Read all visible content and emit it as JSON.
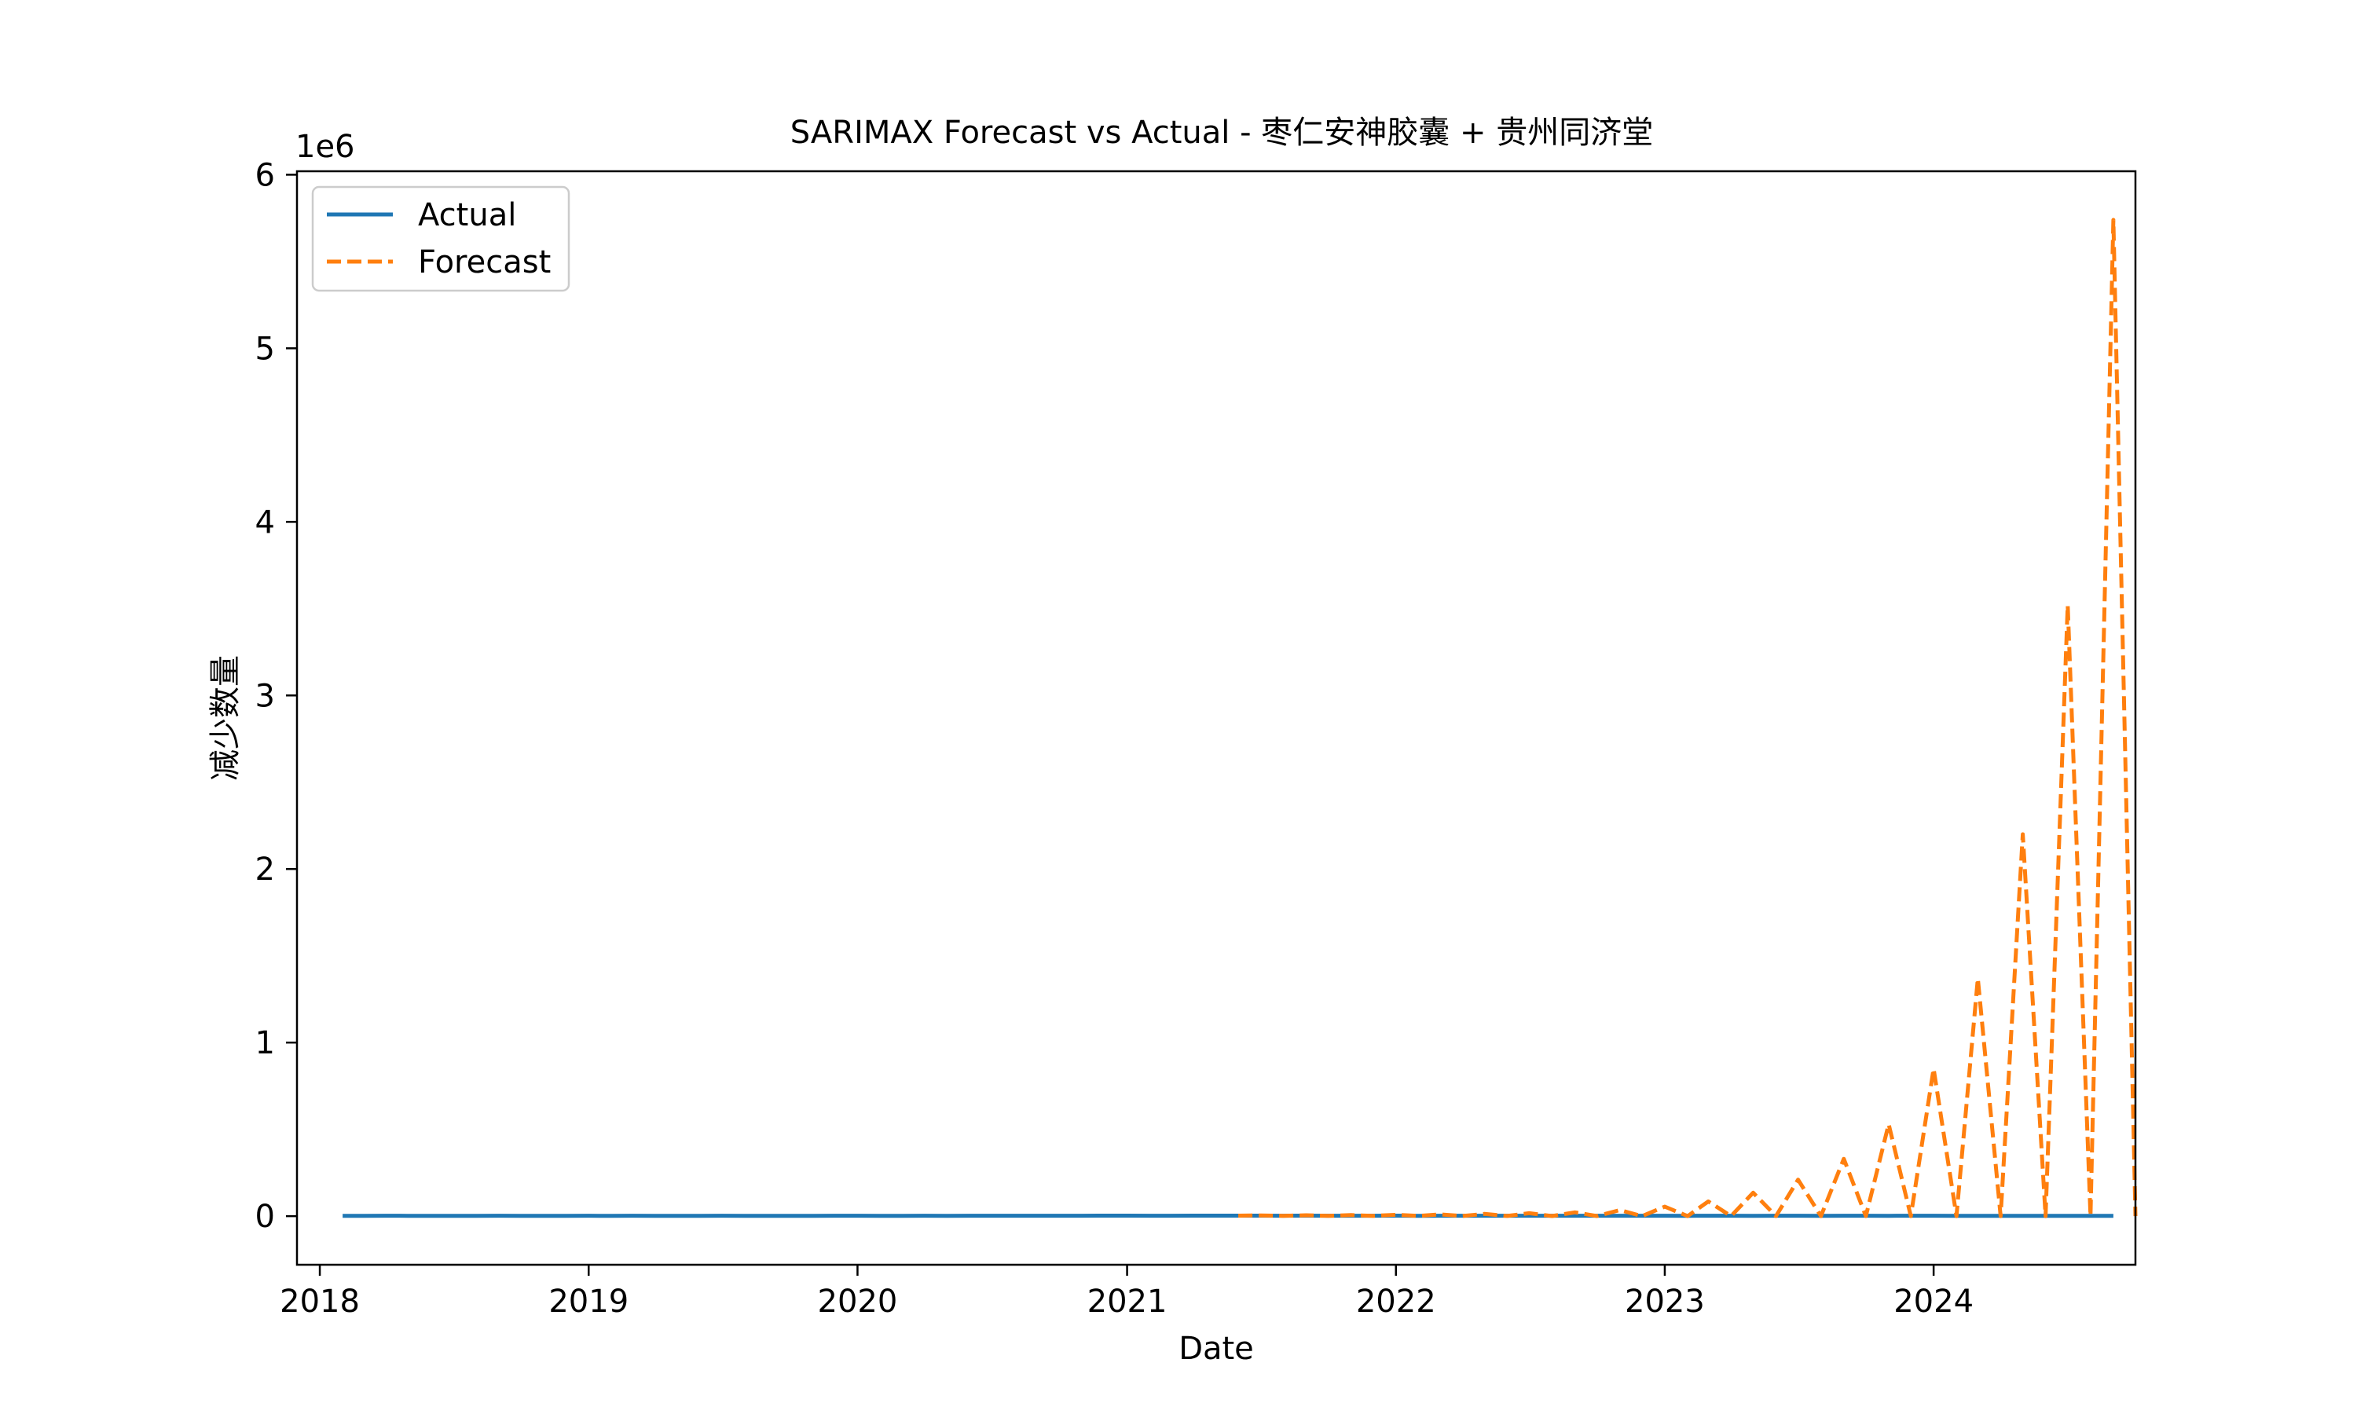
{
  "chart_data": {
    "type": "line",
    "title": "SARIMAX Forecast vs Actual - 枣仁安神胶囊 + 贵州同济堂",
    "xlabel": "Date",
    "ylabel": "减少数量",
    "y_offset_label": "1e6",
    "xlim": [
      "2017-12-01",
      "2024-10-01"
    ],
    "ylim": [
      -280000,
      6020000
    ],
    "x_ticks": [
      "2018",
      "2019",
      "2020",
      "2021",
      "2022",
      "2023",
      "2024"
    ],
    "x_tick_dates": [
      "2018-01-01",
      "2019-01-01",
      "2020-01-01",
      "2021-01-01",
      "2022-01-01",
      "2023-01-01",
      "2024-01-01"
    ],
    "y_ticks": [
      0,
      1000000,
      2000000,
      3000000,
      4000000,
      5000000,
      6000000
    ],
    "y_tick_labels": [
      "0",
      "1",
      "2",
      "3",
      "4",
      "5",
      "6"
    ],
    "legend": {
      "position": "top-left",
      "entries": [
        "Actual",
        "Forecast"
      ]
    },
    "grid": false,
    "series": [
      {
        "name": "Actual",
        "color": "#1f77b4",
        "style": "solid",
        "points": [
          [
            "2018-02-01",
            2000
          ],
          [
            "2018-03-01",
            1800
          ],
          [
            "2018-04-01",
            2200
          ],
          [
            "2018-05-01",
            1900
          ],
          [
            "2018-06-01",
            2100
          ],
          [
            "2018-07-01",
            2000
          ],
          [
            "2018-08-01",
            1700
          ],
          [
            "2018-09-01",
            2300
          ],
          [
            "2018-10-01",
            2000
          ],
          [
            "2018-11-01",
            1900
          ],
          [
            "2018-12-01",
            2100
          ],
          [
            "2019-01-01",
            2400
          ],
          [
            "2019-02-01",
            1600
          ],
          [
            "2019-03-01",
            2200
          ],
          [
            "2019-04-01",
            2000
          ],
          [
            "2019-05-01",
            1900
          ],
          [
            "2019-06-01",
            2100
          ],
          [
            "2019-07-01",
            2200
          ],
          [
            "2019-08-01",
            1800
          ],
          [
            "2019-09-01",
            2000
          ],
          [
            "2019-10-01",
            2100
          ],
          [
            "2019-11-01",
            1900
          ],
          [
            "2019-12-01",
            2300
          ],
          [
            "2020-01-01",
            2500
          ],
          [
            "2020-02-01",
            1500
          ],
          [
            "2020-03-01",
            2000
          ],
          [
            "2020-04-01",
            2200
          ],
          [
            "2020-05-01",
            2100
          ],
          [
            "2020-06-01",
            2400
          ],
          [
            "2020-07-01",
            2300
          ],
          [
            "2020-08-01",
            2500
          ],
          [
            "2020-09-01",
            2600
          ],
          [
            "2020-10-01",
            2400
          ],
          [
            "2020-11-01",
            2500
          ],
          [
            "2020-12-01",
            2800
          ],
          [
            "2021-01-01",
            3000
          ],
          [
            "2021-02-01",
            2200
          ],
          [
            "2021-03-01",
            2600
          ],
          [
            "2021-04-01",
            2800
          ],
          [
            "2021-05-01",
            2700
          ],
          [
            "2021-06-01",
            2900
          ],
          [
            "2021-07-01",
            2800
          ],
          [
            "2021-08-01",
            2600
          ],
          [
            "2021-09-01",
            2700
          ],
          [
            "2021-10-01",
            2500
          ],
          [
            "2021-11-01",
            2400
          ],
          [
            "2021-12-01",
            2600
          ],
          [
            "2022-01-01",
            2800
          ],
          [
            "2022-02-01",
            2100
          ],
          [
            "2022-03-01",
            2400
          ],
          [
            "2022-04-01",
            2300
          ],
          [
            "2022-05-01",
            2200
          ],
          [
            "2022-06-01",
            2400
          ],
          [
            "2022-07-01",
            2300
          ],
          [
            "2022-08-01",
            2200
          ],
          [
            "2022-09-01",
            2500
          ],
          [
            "2022-10-01",
            2300
          ],
          [
            "2022-11-01",
            2200
          ],
          [
            "2022-12-01",
            2400
          ],
          [
            "2023-01-01",
            2600
          ],
          [
            "2023-02-01",
            2000
          ],
          [
            "2023-03-01",
            2300
          ],
          [
            "2023-04-01",
            2200
          ],
          [
            "2023-05-01",
            2100
          ],
          [
            "2023-06-01",
            2300
          ],
          [
            "2023-07-01",
            2200
          ],
          [
            "2023-08-01",
            2100
          ],
          [
            "2023-09-01",
            2300
          ],
          [
            "2023-10-01",
            2200
          ],
          [
            "2023-11-01",
            2000
          ],
          [
            "2023-12-01",
            2200
          ],
          [
            "2024-01-01",
            2400
          ],
          [
            "2024-02-01",
            1900
          ],
          [
            "2024-03-01",
            2100
          ],
          [
            "2024-04-01",
            2000
          ],
          [
            "2024-05-01",
            1900
          ],
          [
            "2024-06-01",
            2100
          ],
          [
            "2024-07-01",
            2000
          ],
          [
            "2024-08-01",
            1900
          ],
          [
            "2024-09-01",
            2000
          ]
        ]
      },
      {
        "name": "Forecast",
        "color": "#ff7f0e",
        "style": "dashed",
        "points": [
          [
            "2021-06-01",
            3000
          ],
          [
            "2021-07-01",
            4000
          ],
          [
            "2021-08-01",
            2000
          ],
          [
            "2021-09-01",
            5000
          ],
          [
            "2021-10-01",
            2000
          ],
          [
            "2021-11-01",
            6000
          ],
          [
            "2021-12-01",
            1500
          ],
          [
            "2022-01-01",
            8000
          ],
          [
            "2022-02-01",
            1500
          ],
          [
            "2022-03-01",
            10000
          ],
          [
            "2022-04-01",
            1000
          ],
          [
            "2022-05-01",
            13000
          ],
          [
            "2022-06-01",
            1000
          ],
          [
            "2022-07-01",
            17000
          ],
          [
            "2022-08-01",
            500
          ],
          [
            "2022-09-01",
            22000
          ],
          [
            "2022-10-01",
            500
          ],
          [
            "2022-11-01",
            35000
          ],
          [
            "2022-12-01",
            0
          ],
          [
            "2023-01-01",
            55000
          ],
          [
            "2023-02-01",
            0
          ],
          [
            "2023-03-01",
            85000
          ],
          [
            "2023-04-01",
            0
          ],
          [
            "2023-05-01",
            135000
          ],
          [
            "2023-06-01",
            0
          ],
          [
            "2023-07-01",
            210000
          ],
          [
            "2023-08-01",
            0
          ],
          [
            "2023-09-01",
            330000
          ],
          [
            "2023-10-01",
            0
          ],
          [
            "2023-11-01",
            530000
          ],
          [
            "2023-12-01",
            0
          ],
          [
            "2024-01-01",
            850000
          ],
          [
            "2024-02-01",
            0
          ],
          [
            "2024-03-01",
            1370000
          ],
          [
            "2024-04-01",
            0
          ],
          [
            "2024-05-01",
            2200000
          ],
          [
            "2024-06-01",
            0
          ],
          [
            "2024-07-01",
            3520000
          ],
          [
            "2024-08-01",
            0
          ],
          [
            "2024-09-01",
            5740000
          ],
          [
            "2024-10-01",
            0
          ]
        ]
      }
    ]
  }
}
